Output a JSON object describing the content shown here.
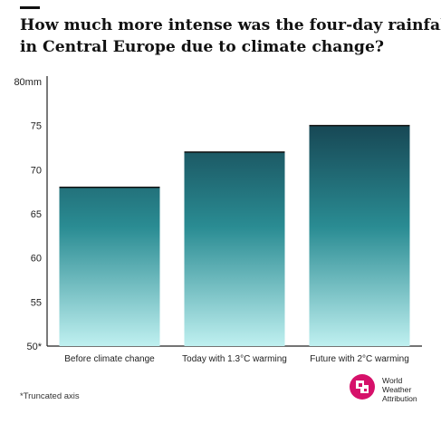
{
  "title_lines": [
    "How much more intense was the four-day rainfall",
    "in Central Europe due to climate change?"
  ],
  "footnote": "*Truncated axis",
  "logo": {
    "icon": "world-weather-attribution-logo-icon",
    "lines": [
      "World",
      "Weather",
      "Attribution"
    ],
    "color": "#d6116a"
  },
  "colors": {
    "bar_top": "#0f2a3a",
    "bar_middle": "#2a8c93",
    "bar_bottom": "#bff0f0",
    "axis": "#222222",
    "grid": "#cfcfcf"
  },
  "chart_data": {
    "type": "bar",
    "categories": [
      "Before climate change",
      "Today with 1.3°C warming",
      "Future with 2°C warming"
    ],
    "values": [
      68,
      72,
      75
    ],
    "ylim": [
      50,
      80
    ],
    "yticks": [
      {
        "value": 50,
        "label": "50*"
      },
      {
        "value": 55,
        "label": "55"
      },
      {
        "value": 60,
        "label": "60"
      },
      {
        "value": 65,
        "label": "65"
      },
      {
        "value": 70,
        "label": "70"
      },
      {
        "value": 75,
        "label": "75"
      },
      {
        "value": 80,
        "label": "80mm"
      }
    ],
    "grid": false,
    "xlabel": "",
    "ylabel": ""
  }
}
